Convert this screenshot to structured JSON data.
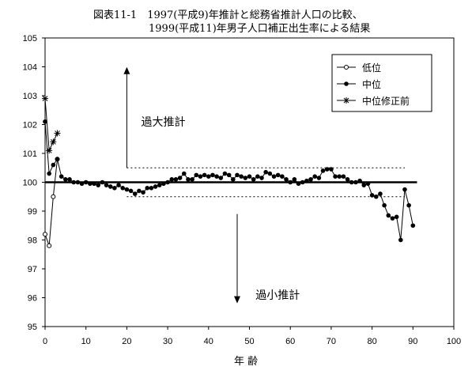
{
  "title_line1": "図表11-1　1997(平成9)年推計と総務省推計人口の比較、",
  "title_line2": "1999(平成11)年男子人口補正出生率による結果",
  "xlabel": "年 齢",
  "chart_data": {
    "type": "line",
    "title": "図表11-1　1997(平成9)年推計と総務省推計人口の比較、 1999(平成11)年男子人口補正出生率による結果",
    "xlabel": "年 齢",
    "ylabel": "",
    "xlim": [
      0,
      100
    ],
    "ylim": [
      95,
      105
    ],
    "x_ticks": [
      0,
      10,
      20,
      30,
      40,
      50,
      60,
      70,
      80,
      90,
      100
    ],
    "y_ticks": [
      95,
      96,
      97,
      98,
      99,
      100,
      101,
      102,
      103,
      104,
      105
    ],
    "legend": {
      "position": "top-right"
    },
    "grid": false,
    "series": [
      {
        "name": "低位",
        "marker": "open-circle",
        "x": [
          0,
          1,
          2,
          3
        ],
        "y": [
          98.2,
          97.8,
          99.5,
          100.8
        ]
      },
      {
        "name": "中位",
        "marker": "filled-circle",
        "x": [
          0,
          1,
          2,
          3,
          4,
          5,
          6,
          7,
          8,
          9,
          10,
          11,
          12,
          13,
          14,
          15,
          16,
          17,
          18,
          19,
          20,
          21,
          22,
          23,
          24,
          25,
          26,
          27,
          28,
          29,
          30,
          31,
          32,
          33,
          34,
          35,
          36,
          37,
          38,
          39,
          40,
          41,
          42,
          43,
          44,
          45,
          46,
          47,
          48,
          49,
          50,
          51,
          52,
          53,
          54,
          55,
          56,
          57,
          58,
          59,
          60,
          61,
          62,
          63,
          64,
          65,
          66,
          67,
          68,
          69,
          70,
          71,
          72,
          73,
          74,
          75,
          76,
          77,
          78,
          79,
          80,
          81,
          82,
          83,
          84,
          85,
          86,
          87,
          88,
          89,
          90,
          91
        ],
        "y": [
          102.1,
          100.3,
          100.6,
          100.8,
          100.2,
          100.1,
          100.1,
          100.0,
          100.0,
          99.95,
          100.0,
          99.95,
          99.95,
          99.9,
          100.0,
          99.9,
          99.85,
          99.8,
          99.9,
          99.8,
          99.75,
          99.7,
          99.6,
          99.7,
          99.65,
          99.8,
          99.8,
          99.85,
          99.9,
          99.95,
          100.0,
          100.1,
          100.1,
          100.15,
          100.3,
          100.1,
          100.1,
          100.25,
          100.2,
          100.25,
          100.2,
          100.25,
          100.2,
          100.15,
          100.3,
          100.25,
          100.1,
          100.25,
          100.2,
          100.15,
          100.2,
          100.1,
          100.2,
          100.15,
          100.35,
          100.3,
          100.2,
          100.25,
          100.2,
          100.1,
          100.0,
          100.1,
          99.95,
          100.0,
          100.05,
          100.1,
          100.2,
          100.15,
          100.4,
          100.45,
          100.45,
          100.2,
          100.2,
          100.2,
          100.1,
          100.0,
          100.0,
          100.05,
          99.9,
          99.95,
          99.55,
          99.5,
          99.6,
          99.2,
          98.85,
          98.75,
          98.8,
          98.0,
          99.75,
          99.2,
          98.5,
          null
        ],
        "note": "data for ages 0–90"
      },
      {
        "name": "中位修正前",
        "marker": "asterisk",
        "x": [
          0,
          1,
          2,
          3
        ],
        "y": [
          102.9,
          101.1,
          101.4,
          101.7
        ]
      }
    ],
    "reference_lines": [
      {
        "y": 100.0,
        "style": "thick-solid"
      },
      {
        "y": 100.5,
        "style": "dotted"
      },
      {
        "y": 99.5,
        "style": "dotted"
      }
    ],
    "annotations": [
      {
        "text": "過大推計",
        "arrow": "up"
      },
      {
        "text": "過小推計",
        "arrow": "down"
      }
    ]
  }
}
